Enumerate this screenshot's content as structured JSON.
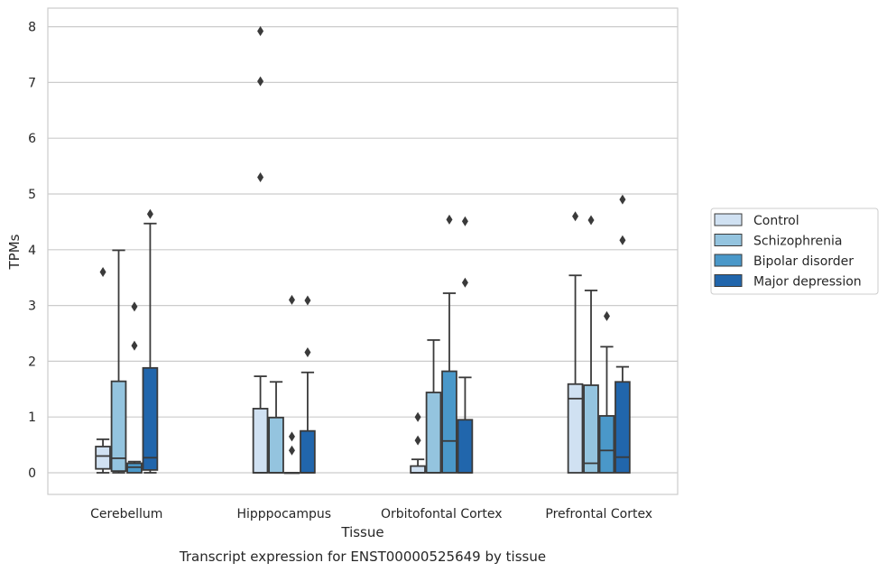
{
  "caption": "Transcript expression for ENST00000525649 by tissue",
  "chart_data": {
    "type": "boxplot",
    "title": "",
    "xlabel": "Tissue",
    "ylabel": "TPMs",
    "ylim": [
      -0.38,
      8.35
    ],
    "yticks": [
      0,
      1,
      2,
      3,
      4,
      5,
      6,
      7,
      8
    ],
    "grid": true,
    "legend_position": "right",
    "categories": [
      "Cerebellum",
      "Hipppocampus",
      "Orbitofontal Cortex",
      "Prefrontal Cortex"
    ],
    "series": [
      {
        "name": "Control",
        "color": "#d0e1f2",
        "boxes": [
          {
            "whislo": 0.0,
            "q1": 0.07,
            "med": 0.3,
            "q3": 0.47,
            "whishi": 0.6,
            "fliers": [
              3.6
            ]
          },
          {
            "whislo": 0.0,
            "q1": 0.0,
            "med": 0.0,
            "q3": 1.15,
            "whishi": 1.73,
            "fliers": [
              7.92,
              7.02,
              5.3
            ]
          },
          {
            "whislo": 0.0,
            "q1": 0.0,
            "med": 0.0,
            "q3": 0.12,
            "whishi": 0.24,
            "fliers": [
              1.0,
              0.58
            ]
          },
          {
            "whislo": 0.0,
            "q1": 0.0,
            "med": 1.33,
            "q3": 1.59,
            "whishi": 3.54,
            "fliers": [
              4.6
            ]
          }
        ]
      },
      {
        "name": "Schizophrenia",
        "color": "#94c4df",
        "boxes": [
          {
            "whislo": 0.0,
            "q1": 0.03,
            "med": 0.26,
            "q3": 1.64,
            "whishi": 3.99,
            "fliers": []
          },
          {
            "whislo": 0.0,
            "q1": 0.0,
            "med": 0.0,
            "q3": 0.99,
            "whishi": 1.63,
            "fliers": []
          },
          {
            "whislo": 0.0,
            "q1": 0.0,
            "med": 0.0,
            "q3": 1.44,
            "whishi": 2.38,
            "fliers": []
          },
          {
            "whislo": 0.0,
            "q1": 0.0,
            "med": 0.17,
            "q3": 1.57,
            "whishi": 3.27,
            "fliers": [
              4.53
            ]
          }
        ]
      },
      {
        "name": "Bipolar disorder",
        "color": "#4a98c9",
        "boxes": [
          {
            "whislo": 0.0,
            "q1": 0.0,
            "med": 0.1,
            "q3": 0.17,
            "whishi": 0.2,
            "fliers": [
              2.98,
              2.28
            ]
          },
          {
            "whislo": 0.0,
            "q1": 0.0,
            "med": 0.0,
            "q3": 0.0,
            "whishi": 0.0,
            "fliers": [
              3.1,
              0.65,
              0.4
            ]
          },
          {
            "whislo": 0.0,
            "q1": 0.0,
            "med": 0.57,
            "q3": 1.82,
            "whishi": 3.22,
            "fliers": [
              4.54
            ]
          },
          {
            "whislo": 0.0,
            "q1": 0.0,
            "med": 0.4,
            "q3": 1.02,
            "whishi": 2.26,
            "fliers": [
              2.81
            ]
          }
        ]
      },
      {
        "name": "Major depression",
        "color": "#2166ac",
        "boxes": [
          {
            "whislo": 0.0,
            "q1": 0.05,
            "med": 0.27,
            "q3": 1.88,
            "whishi": 4.47,
            "fliers": [
              4.64
            ]
          },
          {
            "whislo": 0.0,
            "q1": 0.0,
            "med": 0.0,
            "q3": 0.75,
            "whishi": 1.8,
            "fliers": [
              3.09,
              2.16
            ]
          },
          {
            "whislo": 0.0,
            "q1": 0.0,
            "med": 0.0,
            "q3": 0.95,
            "whishi": 1.71,
            "fliers": [
              4.51,
              3.41
            ]
          },
          {
            "whislo": 0.0,
            "q1": 0.0,
            "med": 0.28,
            "q3": 1.63,
            "whishi": 1.9,
            "fliers": [
              4.9,
              4.17
            ]
          }
        ]
      }
    ]
  }
}
